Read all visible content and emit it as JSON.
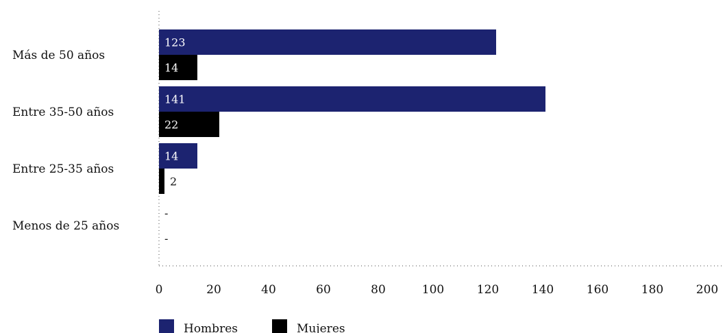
{
  "chart_data": {
    "type": "bar",
    "orientation": "horizontal",
    "categories": [
      "Más de 50 años",
      "Entre 35-50 años",
      "Entre 25-35 años",
      "Menos de 25 años"
    ],
    "series": [
      {
        "name": "Hombres",
        "color": "#1c2370",
        "values": [
          123,
          141,
          14,
          null
        ],
        "labels": [
          "123",
          "141",
          "14",
          "-"
        ]
      },
      {
        "name": "Mujeres",
        "color": "#000000",
        "values": [
          14,
          22,
          2,
          null
        ],
        "labels": [
          "14",
          "22",
          "2",
          "-"
        ]
      }
    ],
    "xticks": [
      "0",
      "20",
      "40",
      "60",
      "80",
      "100",
      "120",
      "140",
      "160",
      "180",
      "200"
    ],
    "xlim": [
      0,
      200
    ],
    "title": "",
    "xlabel": "",
    "ylabel": "",
    "legend_position": "bottom-left",
    "grid": false
  }
}
